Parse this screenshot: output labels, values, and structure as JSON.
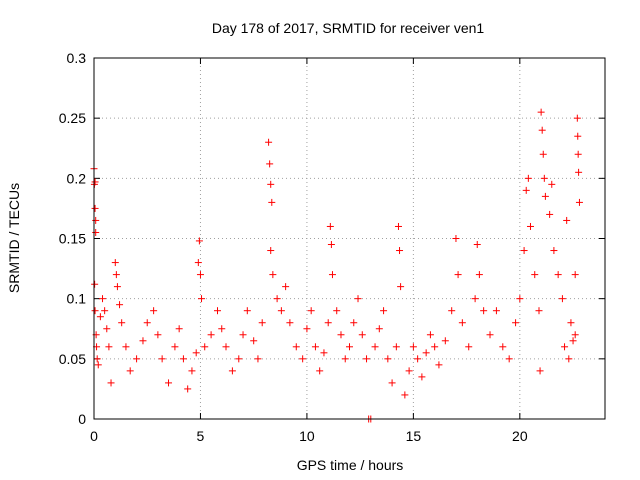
{
  "chart_data": {
    "type": "scatter",
    "title": "Day 178 of 2017, SRMTID for receiver ven1",
    "xlabel": "GPS time / hours",
    "ylabel": "SRMTID / TECUs",
    "xlim": [
      0,
      24
    ],
    "ylim": [
      0,
      0.3
    ],
    "x_ticks": [
      0,
      5,
      10,
      15,
      20
    ],
    "x_tick_labels": [
      "0",
      "5",
      "10",
      "15",
      "20"
    ],
    "y_ticks": [
      0,
      0.05,
      0.1,
      0.15,
      0.2,
      0.25,
      0.3
    ],
    "y_tick_labels": [
      "0",
      "0.05",
      "0.1",
      "0.15",
      "0.2",
      "0.25",
      "0.3"
    ],
    "grid": true,
    "marker": "+",
    "color": "#ff0000",
    "series": [
      {
        "name": "SRMTID",
        "points": [
          [
            0.0,
            0.208
          ],
          [
            0.02,
            0.195
          ],
          [
            0.05,
            0.197
          ],
          [
            0.05,
            0.175
          ],
          [
            0.08,
            0.165
          ],
          [
            0.08,
            0.155
          ],
          [
            0.03,
            0.112
          ],
          [
            0.05,
            0.09
          ],
          [
            0.1,
            0.07
          ],
          [
            0.12,
            0.06
          ],
          [
            0.15,
            0.05
          ],
          [
            0.2,
            0.045
          ],
          [
            0.3,
            0.085
          ],
          [
            0.4,
            0.1
          ],
          [
            0.5,
            0.09
          ],
          [
            0.6,
            0.075
          ],
          [
            0.7,
            0.06
          ],
          [
            0.8,
            0.03
          ],
          [
            1.0,
            0.13
          ],
          [
            1.05,
            0.12
          ],
          [
            1.1,
            0.11
          ],
          [
            1.2,
            0.095
          ],
          [
            1.3,
            0.08
          ],
          [
            1.5,
            0.06
          ],
          [
            1.7,
            0.04
          ],
          [
            2.0,
            0.05
          ],
          [
            2.3,
            0.065
          ],
          [
            2.5,
            0.08
          ],
          [
            2.8,
            0.09
          ],
          [
            3.0,
            0.07
          ],
          [
            3.2,
            0.05
          ],
          [
            3.5,
            0.03
          ],
          [
            3.8,
            0.06
          ],
          [
            4.0,
            0.075
          ],
          [
            4.2,
            0.05
          ],
          [
            4.4,
            0.025
          ],
          [
            4.6,
            0.04
          ],
          [
            4.8,
            0.055
          ],
          [
            4.9,
            0.13
          ],
          [
            4.95,
            0.148
          ],
          [
            5.0,
            0.12
          ],
          [
            5.05,
            0.1
          ],
          [
            5.2,
            0.06
          ],
          [
            5.5,
            0.07
          ],
          [
            5.8,
            0.09
          ],
          [
            6.0,
            0.075
          ],
          [
            6.2,
            0.06
          ],
          [
            6.5,
            0.04
          ],
          [
            6.8,
            0.05
          ],
          [
            7.0,
            0.07
          ],
          [
            7.2,
            0.09
          ],
          [
            7.5,
            0.065
          ],
          [
            7.7,
            0.05
          ],
          [
            7.9,
            0.08
          ],
          [
            8.2,
            0.23
          ],
          [
            8.25,
            0.212
          ],
          [
            8.3,
            0.195
          ],
          [
            8.35,
            0.18
          ],
          [
            8.3,
            0.14
          ],
          [
            8.4,
            0.12
          ],
          [
            8.6,
            0.1
          ],
          [
            8.8,
            0.09
          ],
          [
            9.0,
            0.11
          ],
          [
            9.2,
            0.08
          ],
          [
            9.5,
            0.06
          ],
          [
            9.8,
            0.05
          ],
          [
            10.0,
            0.075
          ],
          [
            10.2,
            0.09
          ],
          [
            10.4,
            0.06
          ],
          [
            10.6,
            0.04
          ],
          [
            10.8,
            0.055
          ],
          [
            11.0,
            0.08
          ],
          [
            11.1,
            0.16
          ],
          [
            11.15,
            0.145
          ],
          [
            11.2,
            0.12
          ],
          [
            11.4,
            0.09
          ],
          [
            11.6,
            0.07
          ],
          [
            11.8,
            0.05
          ],
          [
            12.0,
            0.06
          ],
          [
            12.2,
            0.08
          ],
          [
            12.4,
            0.1
          ],
          [
            12.6,
            0.07
          ],
          [
            12.8,
            0.05
          ],
          [
            12.9,
            0.0
          ],
          [
            13.0,
            0.0
          ],
          [
            13.2,
            0.06
          ],
          [
            13.4,
            0.075
          ],
          [
            13.6,
            0.09
          ],
          [
            13.8,
            0.05
          ],
          [
            14.0,
            0.03
          ],
          [
            14.2,
            0.06
          ],
          [
            14.3,
            0.16
          ],
          [
            14.35,
            0.14
          ],
          [
            14.4,
            0.11
          ],
          [
            14.6,
            0.02
          ],
          [
            14.8,
            0.04
          ],
          [
            15.0,
            0.06
          ],
          [
            15.2,
            0.05
          ],
          [
            15.4,
            0.035
          ],
          [
            15.6,
            0.055
          ],
          [
            15.8,
            0.07
          ],
          [
            16.0,
            0.06
          ],
          [
            16.2,
            0.045
          ],
          [
            16.5,
            0.065
          ],
          [
            16.8,
            0.09
          ],
          [
            17.0,
            0.15
          ],
          [
            17.1,
            0.12
          ],
          [
            17.3,
            0.08
          ],
          [
            17.6,
            0.06
          ],
          [
            17.9,
            0.1
          ],
          [
            18.0,
            0.145
          ],
          [
            18.1,
            0.12
          ],
          [
            18.3,
            0.09
          ],
          [
            18.6,
            0.07
          ],
          [
            18.9,
            0.09
          ],
          [
            19.2,
            0.06
          ],
          [
            19.5,
            0.05
          ],
          [
            19.8,
            0.08
          ],
          [
            20.0,
            0.1
          ],
          [
            20.2,
            0.14
          ],
          [
            20.3,
            0.19
          ],
          [
            20.4,
            0.2
          ],
          [
            20.5,
            0.16
          ],
          [
            20.7,
            0.12
          ],
          [
            20.9,
            0.09
          ],
          [
            20.95,
            0.04
          ],
          [
            21.0,
            0.255
          ],
          [
            21.05,
            0.24
          ],
          [
            21.1,
            0.22
          ],
          [
            21.15,
            0.2
          ],
          [
            21.2,
            0.185
          ],
          [
            21.4,
            0.17
          ],
          [
            21.5,
            0.195
          ],
          [
            21.6,
            0.14
          ],
          [
            21.8,
            0.12
          ],
          [
            22.0,
            0.1
          ],
          [
            22.1,
            0.06
          ],
          [
            22.2,
            0.165
          ],
          [
            22.4,
            0.08
          ],
          [
            22.6,
            0.07
          ],
          [
            22.7,
            0.25
          ],
          [
            22.72,
            0.235
          ],
          [
            22.74,
            0.22
          ],
          [
            22.76,
            0.205
          ],
          [
            22.8,
            0.18
          ],
          [
            22.6,
            0.12
          ],
          [
            22.5,
            0.065
          ],
          [
            22.3,
            0.05
          ]
        ]
      }
    ]
  }
}
